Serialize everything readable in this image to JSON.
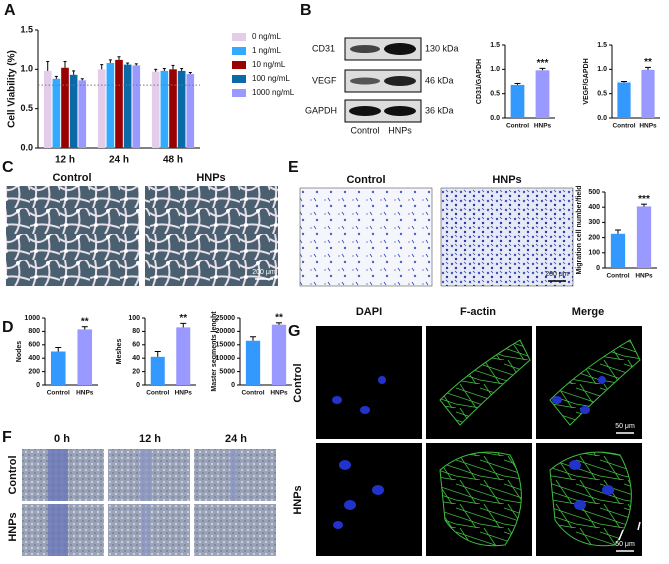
{
  "panel_labels": [
    "A",
    "B",
    "C",
    "D",
    "E",
    "F",
    "G"
  ],
  "blot": {
    "rows": [
      "CD31",
      "VEGF",
      "GAPDH"
    ],
    "sizes": [
      "130 kDa",
      "46 kDa",
      "36 kDa"
    ],
    "lanes": [
      "Control",
      "HNPs"
    ]
  },
  "panel_c": {
    "titles": [
      "Control",
      "HNPs"
    ],
    "scale": "200 μm"
  },
  "panel_e": {
    "titles": [
      "Control",
      "HNPs"
    ],
    "scale": "200 μm"
  },
  "panel_f": {
    "columns": [
      "0 h",
      "12 h",
      "24 h"
    ],
    "rows": [
      "Control",
      "HNPs"
    ]
  },
  "panel_g": {
    "columns": [
      "DAPI",
      "F-actin",
      "Merge"
    ],
    "rows": [
      "Control",
      "HNPs"
    ],
    "scale": "50 μm"
  },
  "chart_data": [
    {
      "type": "bar",
      "y_label": "Cell Viability (%)",
      "categories": [
        "12 h",
        "24 h",
        "48 h"
      ],
      "series": [
        {
          "name": "0 ng/mL",
          "color": "#e3cdea",
          "values": [
            0.98,
            1.0,
            0.97
          ],
          "errors": [
            0.12,
            0.06,
            0.03
          ]
        },
        {
          "name": "1 ng/mL",
          "color": "#33aaff",
          "values": [
            0.88,
            1.08,
            0.98
          ],
          "errors": [
            0.03,
            0.04,
            0.03
          ]
        },
        {
          "name": "10 ng/mL",
          "color": "#990000",
          "values": [
            1.02,
            1.12,
            1.0
          ],
          "errors": [
            0.08,
            0.04,
            0.05
          ]
        },
        {
          "name": "100 ng/mL",
          "color": "#0a6aa8",
          "values": [
            0.93,
            1.06,
            0.98
          ],
          "errors": [
            0.05,
            0.02,
            0.03
          ]
        },
        {
          "name": "1000 ng/mL",
          "color": "#9999ff",
          "values": [
            0.86,
            1.05,
            0.94
          ],
          "errors": [
            0.02,
            0.02,
            0.02
          ]
        }
      ],
      "hline": 0.8,
      "ylim": [
        0,
        1.5
      ],
      "yticks": [
        {
          "value": 0,
          "label": "0.0"
        },
        0.5,
        {
          "value": 1,
          "label": "1.0"
        },
        1.5
      ]
    },
    {
      "type": "bar",
      "y_label": "CD31/GAPDH",
      "categories": [
        "Control",
        "HNPs"
      ],
      "colors": [
        "#3399ff",
        "#9999ff"
      ],
      "values": [
        0.68,
        0.98
      ],
      "errors": [
        0.03,
        0.04
      ],
      "annotation": "***",
      "ylim": [
        0,
        1.5
      ],
      "yticks": [
        {
          "value": 0,
          "label": "0.0"
        },
        0.5,
        {
          "value": 1,
          "label": "1.0"
        },
        1.5
      ]
    },
    {
      "type": "bar",
      "y_label": "VEGF/GAPDH",
      "categories": [
        "Control",
        "HNPs"
      ],
      "colors": [
        "#3399ff",
        "#9999ff"
      ],
      "values": [
        0.73,
        0.99
      ],
      "errors": [
        0.02,
        0.05
      ],
      "annotation": "**",
      "ylim": [
        0,
        1.5
      ],
      "yticks": [
        {
          "value": 0,
          "label": "0.0"
        },
        0.5,
        {
          "value": 1,
          "label": "1.0"
        },
        1.5
      ]
    },
    {
      "type": "bar",
      "y_label": "Nodes",
      "categories": [
        "Control",
        "HNPs"
      ],
      "colors": [
        "#3399ff",
        "#9999ff"
      ],
      "values": [
        500,
        830
      ],
      "errors": [
        60,
        40
      ],
      "annotation": "**",
      "ylim": [
        0,
        1000
      ],
      "yticks": [
        0,
        200,
        400,
        600,
        800,
        1000
      ]
    },
    {
      "type": "bar",
      "y_label": "Meshes",
      "categories": [
        "Control",
        "HNPs"
      ],
      "colors": [
        "#3399ff",
        "#9999ff"
      ],
      "values": [
        42,
        86
      ],
      "errors": [
        8,
        6
      ],
      "annotation": "**",
      "ylim": [
        0,
        100
      ],
      "yticks": [
        0,
        20,
        40,
        60,
        80,
        100
      ]
    },
    {
      "type": "bar",
      "y_label": "Master segments lenght",
      "categories": [
        "Control",
        "HNPs"
      ],
      "colors": [
        "#3399ff",
        "#9999ff"
      ],
      "values": [
        16500,
        22500
      ],
      "errors": [
        1500,
        700
      ],
      "annotation": "**",
      "ylim": [
        0,
        25000
      ],
      "yticks": [
        0,
        5000,
        10000,
        15000,
        20000,
        25000
      ]
    },
    {
      "type": "bar",
      "y_label": "Migration cell number/field",
      "categories": [
        "Control",
        "HNPs"
      ],
      "colors": [
        "#3399ff",
        "#9999ff"
      ],
      "values": [
        225,
        405
      ],
      "errors": [
        25,
        15
      ],
      "annotation": "***",
      "ylim": [
        0,
        500
      ],
      "yticks": [
        0,
        100,
        200,
        300,
        400,
        500
      ]
    }
  ]
}
